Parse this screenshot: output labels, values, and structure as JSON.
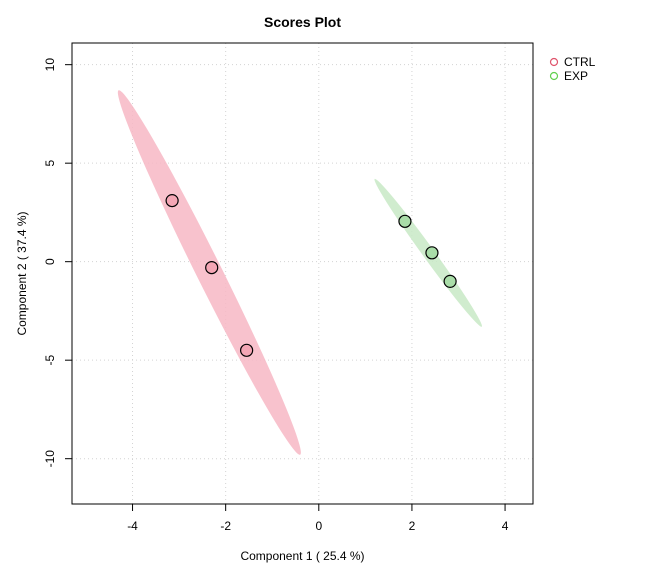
{
  "chart_data": {
    "type": "scatter",
    "title": "Scores Plot",
    "xlabel": "Component 1 ( 25.4 %)",
    "ylabel": "Component 2 ( 37.4 %)",
    "xlim": [
      -5.3,
      4.6
    ],
    "ylim": [
      -12.3,
      11.1
    ],
    "xticks": [
      -4,
      -2,
      0,
      2,
      4
    ],
    "yticks": [
      -10,
      -5,
      0,
      5,
      10
    ],
    "grid": true,
    "legend_position": "top-right",
    "series": [
      {
        "name": "CTRL",
        "color": "#DF536B",
        "fill": "#F4A6B5",
        "ellipse_color": "#F7B7C4",
        "points": [
          {
            "x": -3.15,
            "y": 3.1
          },
          {
            "x": -2.3,
            "y": -0.3
          },
          {
            "x": -1.55,
            "y": -4.5
          }
        ],
        "ellipse_ends": [
          [
            -4.3,
            8.7
          ],
          [
            -0.4,
            -9.8
          ]
        ],
        "ellipse_width": 0.55
      },
      {
        "name": "EXP",
        "color": "#61D04F",
        "fill": "#A9DDA8",
        "ellipse_color": "#C8E9C6",
        "points": [
          {
            "x": 1.85,
            "y": 2.05
          },
          {
            "x": 2.43,
            "y": 0.45
          },
          {
            "x": 2.82,
            "y": -1.0
          }
        ],
        "ellipse_ends": [
          [
            1.2,
            4.2
          ],
          [
            3.5,
            -3.3
          ]
        ],
        "ellipse_width": 0.25
      }
    ]
  }
}
